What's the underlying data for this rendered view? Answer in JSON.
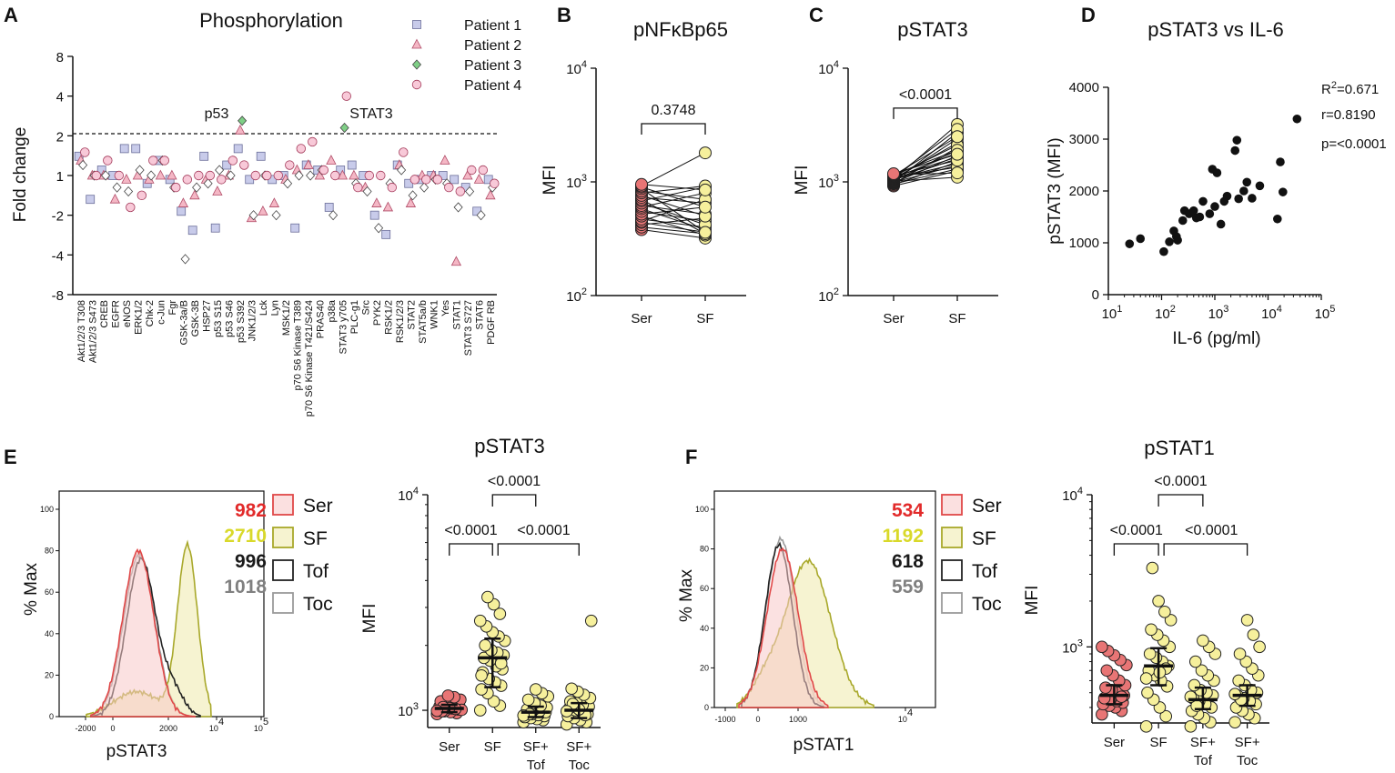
{
  "colors": {
    "patient1": "#c8cbea",
    "patient2": "#f4b7c5",
    "patient3": "#9fd6a3",
    "patient4": "#f8c9d8",
    "ser": "#e87575",
    "sf": "#f6f09c",
    "scatter": "#111111",
    "ser_hist": "#e04848",
    "sf_hist": "#a8a82a",
    "tof_hist": "#222222",
    "toc_hist": "#9a9a9a",
    "mfi_ser": "#e22a2a",
    "mfi_sf": "#d9d92a",
    "mfi_tof": "#1a1a1a",
    "mfi_toc": "#808080"
  },
  "chart_data": [
    {
      "panel": "A",
      "type": "scatter",
      "title": "Phosphorylation",
      "ylabel": "Fold change",
      "yticks": [
        "8",
        "4",
        "2",
        "1",
        "-2",
        "-4",
        "-8"
      ],
      "threshold": "2",
      "legend": [
        "Patient 1",
        "Patient 2",
        "Patient 3",
        "Patient 4"
      ],
      "annotations": [
        "p53",
        "STAT3"
      ],
      "categories": [
        "Akt1/2/3 T308",
        "Akt1/2/3 S473",
        "CREB",
        "EGFR",
        "eNOS",
        "ERK1/2",
        "Chk-2",
        "c-Jun",
        "Fgr",
        "GSK-3a/B",
        "GSK-3B",
        "HSP27",
        "p53 S15",
        "p53 S46",
        "p53 S392",
        "JNK1/2/3",
        "Lck",
        "Lyn",
        "MSK1/2",
        "p70 S6 Kinase T389",
        "p70 S6 Kinase T421/S424",
        "PRAS40",
        "p38a",
        "STAT3 y705",
        "PLC-g1",
        "Src",
        "PYK2",
        "RSK1/2",
        "RSK1/2/3",
        "STAT2",
        "STAT5a/b",
        "WNK1",
        "Yes",
        "STAT1",
        "STAT3 S727",
        "STAT6",
        "PDGF RB"
      ],
      "series": [
        {
          "name": "Patient 1",
          "values": [
            1.4,
            -1.6,
            1.1,
            1.0,
            1.6,
            1.6,
            -1.2,
            1.3,
            -1.1,
            -1.9,
            -2.6,
            1.4,
            -2.5,
            1.2,
            1.6,
            -1.1,
            1.4,
            -1.1,
            1.0,
            -2.5,
            1.2,
            1.1,
            -1.8,
            1.1,
            1.2,
            1.0,
            -2.0,
            -2.8,
            1.2,
            -1.2,
            -1.1,
            1.0,
            1.0,
            -1.1,
            -1.3,
            -1.9,
            -1.1
          ]
        },
        {
          "name": "Patient 2",
          "values": [
            1.3,
            1.0,
            1.0,
            -1.6,
            -1.1,
            1.0,
            -1.1,
            1.0,
            1.0,
            -1.7,
            -1.5,
            -1.1,
            -1.4,
            1.0,
            2.2,
            -2.1,
            -1.9,
            -1.7,
            -1.1,
            1.1,
            1.2,
            1.0,
            1.3,
            1.0,
            -1.0,
            -1.3,
            -1.7,
            -1.8,
            1.2,
            -1.7,
            -1.0,
            1.0,
            1.3,
            -4.5,
            1.0,
            -1.1,
            -1.5
          ]
        },
        {
          "name": "Patient 3",
          "values": [
            1.2,
            1.0,
            1.0,
            -1.3,
            -1.4,
            1.1,
            1.0,
            1.3,
            -1.3,
            -4.3,
            -1.3,
            -1.2,
            1.1,
            1.0,
            2.6,
            -2.0,
            -1.0,
            -2.0,
            -1.2,
            1.0,
            1.0,
            1.1,
            -2.0,
            2.3,
            -1.2,
            -1.4,
            -2.5,
            -1.2,
            1.1,
            -1.5,
            -1.3,
            -1.1,
            -1.2,
            -1.8,
            -1.4,
            -2.0,
            -1.3
          ]
        },
        {
          "name": "Patient 4",
          "values": [
            1.5,
            1.0,
            1.3,
            1.0,
            -1.8,
            -1.5,
            1.3,
            1.3,
            -1.3,
            -1.1,
            1.0,
            -1.0,
            -1.1,
            1.3,
            1.2,
            1.0,
            -1.0,
            1.0,
            1.2,
            1.6,
            1.8,
            1.1,
            1.0,
            4.0,
            -1.3,
            1.0,
            -1.0,
            -1.3,
            1.5,
            -1.1,
            -1.1,
            -1.1,
            -1.3,
            -1.4,
            1.1,
            1.1,
            -1.2
          ]
        }
      ]
    },
    {
      "panel": "B",
      "type": "line",
      "title": "pNFκBp65",
      "ylabel": "MFI",
      "yticks": [
        "10",
        "10",
        "10"
      ],
      "yexp": [
        "4",
        "3",
        "2"
      ],
      "categories": [
        "Ser",
        "SF"
      ],
      "pvalue": "0.3748",
      "pairs": [
        [
          380,
          320
        ],
        [
          400,
          350
        ],
        [
          420,
          480
        ],
        [
          440,
          360
        ],
        [
          450,
          700
        ],
        [
          470,
          400
        ],
        [
          500,
          340
        ],
        [
          520,
          600
        ],
        [
          550,
          450
        ],
        [
          580,
          380
        ],
        [
          600,
          800
        ],
        [
          620,
          520
        ],
        [
          650,
          420
        ],
        [
          680,
          900
        ],
        [
          700,
          350
        ],
        [
          730,
          650
        ],
        [
          760,
          500
        ],
        [
          800,
          920
        ],
        [
          830,
          700
        ],
        [
          870,
          360
        ],
        [
          900,
          600
        ],
        [
          920,
          1800
        ],
        [
          950,
          850
        ]
      ]
    },
    {
      "panel": "C",
      "type": "line",
      "title": "pSTAT3",
      "ylabel": "MFI",
      "yticks": [
        "10",
        "10",
        "10"
      ],
      "yexp": [
        "4",
        "3",
        "2"
      ],
      "categories": [
        "Ser",
        "SF"
      ],
      "pvalue": "<0.0001",
      "pairs": [
        [
          920,
          1250
        ],
        [
          940,
          1500
        ],
        [
          960,
          1300
        ],
        [
          970,
          2000
        ],
        [
          980,
          1700
        ],
        [
          990,
          1400
        ],
        [
          1000,
          2700
        ],
        [
          1010,
          1100
        ],
        [
          1020,
          1900
        ],
        [
          1030,
          2400
        ],
        [
          1040,
          1600
        ],
        [
          1050,
          3200
        ],
        [
          1060,
          1450
        ],
        [
          1070,
          2200
        ],
        [
          1080,
          1800
        ],
        [
          1090,
          1350
        ],
        [
          1100,
          2900
        ],
        [
          1110,
          1650
        ],
        [
          1120,
          2100
        ],
        [
          1130,
          1550
        ],
        [
          1140,
          2500
        ],
        [
          1150,
          1200
        ],
        [
          1160,
          1900
        ],
        [
          1180,
          1750
        ]
      ]
    },
    {
      "panel": "D",
      "type": "scatter",
      "title": "pSTAT3 vs IL-6",
      "xlabel": "IL-6 (pg/ml)",
      "ylabel": "pSTAT3 (MFI)",
      "yticks": [
        "4000",
        "3000",
        "2000",
        "1000",
        "0"
      ],
      "xticks": [
        "10",
        "10",
        "10",
        "10",
        "10"
      ],
      "xexp": [
        "1",
        "2",
        "3",
        "4",
        "5"
      ],
      "stats": {
        "r2_prefix": "R",
        "r2_sup": "2",
        "r2_value": "=0.671",
        "r": "r=0.8190",
        "p": "p=<0.0001"
      },
      "points": [
        [
          25,
          980
        ],
        [
          40,
          1080
        ],
        [
          110,
          830
        ],
        [
          140,
          1020
        ],
        [
          170,
          1230
        ],
        [
          190,
          1120
        ],
        [
          200,
          1050
        ],
        [
          250,
          1430
        ],
        [
          270,
          1620
        ],
        [
          330,
          1560
        ],
        [
          400,
          1620
        ],
        [
          450,
          1480
        ],
        [
          520,
          1500
        ],
        [
          600,
          1800
        ],
        [
          800,
          1560
        ],
        [
          900,
          2420
        ],
        [
          1000,
          1700
        ],
        [
          1100,
          2350
        ],
        [
          1300,
          1360
        ],
        [
          1500,
          1800
        ],
        [
          1700,
          1900
        ],
        [
          2400,
          2780
        ],
        [
          2600,
          2980
        ],
        [
          2800,
          1850
        ],
        [
          3500,
          2000
        ],
        [
          4000,
          2170
        ],
        [
          5000,
          1860
        ],
        [
          7000,
          2100
        ],
        [
          15000,
          1460
        ],
        [
          17000,
          2560
        ],
        [
          19000,
          1980
        ],
        [
          35000,
          3390
        ]
      ]
    },
    {
      "panel": "E",
      "type": "area",
      "xlabel": "pSTAT3",
      "ylabel": "% Max",
      "yticks": [
        "100",
        "80",
        "60",
        "40",
        "20",
        "0"
      ],
      "xticks": [
        "-2000",
        "0",
        "2000",
        "10",
        "10"
      ],
      "xexp": [
        "4",
        "5"
      ],
      "mfi": [
        "982",
        "2710",
        "996",
        "1018"
      ],
      "legend": [
        "Ser",
        "SF",
        "Tof",
        "Toc"
      ]
    },
    {
      "panel": "E",
      "type": "scatter",
      "title": "pSTAT3",
      "ylabel": "MFI",
      "yticks": [
        "10",
        "10"
      ],
      "yexp": [
        "4",
        "3"
      ],
      "categories": [
        [
          "Ser"
        ],
        [
          "SF"
        ],
        [
          "SF+",
          "Tof"
        ],
        [
          "SF+",
          "Toc"
        ]
      ],
      "pvalues": [
        "<0.0001",
        "<0.0001",
        "<0.0001"
      ],
      "groups": [
        {
          "name": "Ser",
          "median": 1020,
          "q1": 980,
          "q3": 1060,
          "values": [
            960,
            970,
            980,
            990,
            1000,
            1010,
            1020,
            1030,
            1040,
            1050,
            1060,
            1080,
            1100,
            1120,
            1150,
            1170,
            990,
            1005,
            1015,
            1025,
            1035,
            995
          ]
        },
        {
          "name": "SF",
          "median": 1750,
          "q1": 1280,
          "q3": 2150,
          "values": [
            1000,
            1050,
            1100,
            1200,
            1250,
            1300,
            1350,
            1400,
            1500,
            1550,
            1600,
            1700,
            1750,
            1800,
            1850,
            1900,
            2000,
            2100,
            2200,
            2300,
            2450,
            2600,
            2800,
            3100,
            3350,
            1450,
            1650
          ]
        },
        {
          "name": "SF+Tof",
          "median": 980,
          "q1": 930,
          "q3": 1040,
          "values": [
            880,
            900,
            910,
            920,
            930,
            940,
            950,
            960,
            970,
            980,
            990,
            1000,
            1010,
            1030,
            1050,
            1080,
            1120,
            1160,
            1200,
            1250,
            960,
            945
          ]
        },
        {
          "name": "SF+Toc",
          "median": 1000,
          "q1": 920,
          "q3": 1080,
          "values": [
            860,
            880,
            900,
            920,
            940,
            960,
            980,
            1000,
            1020,
            1040,
            1060,
            1080,
            1100,
            1140,
            1180,
            1220,
            1260,
            2600,
            950,
            1010,
            1070,
            990
          ]
        }
      ]
    },
    {
      "panel": "F",
      "type": "area",
      "xlabel": "pSTAT1",
      "ylabel": "% Max",
      "yticks": [
        "100",
        "80",
        "60",
        "40",
        "20",
        "0"
      ],
      "xticks": [
        "-1000",
        "0",
        "1000",
        "10"
      ],
      "xexp": [
        "4"
      ],
      "mfi": [
        "534",
        "1192",
        "618",
        "559"
      ],
      "legend": [
        "Ser",
        "SF",
        "Tof",
        "Toc"
      ]
    },
    {
      "panel": "F",
      "type": "scatter",
      "title": "pSTAT1",
      "ylabel": "MFI",
      "yticks": [
        "10",
        "10"
      ],
      "yexp": [
        "4",
        "3"
      ],
      "categories": [
        [
          "Ser"
        ],
        [
          "SF"
        ],
        [
          "SF+",
          "Tof"
        ],
        [
          "SF+",
          "Toc"
        ]
      ],
      "pvalues": [
        "<0.0001",
        "<0.0001",
        "<0.0001"
      ],
      "groups": [
        {
          "name": "Ser",
          "median": 480,
          "q1": 420,
          "q3": 560,
          "values": [
            360,
            380,
            400,
            410,
            420,
            430,
            440,
            450,
            460,
            480,
            500,
            520,
            540,
            560,
            600,
            650,
            700,
            760,
            820,
            880,
            940,
            1000,
            470
          ]
        },
        {
          "name": "SF",
          "median": 750,
          "q1": 560,
          "q3": 980,
          "values": [
            300,
            350,
            400,
            450,
            500,
            550,
            600,
            650,
            700,
            750,
            800,
            850,
            900,
            1000,
            1100,
            1200,
            1300,
            1500,
            1700,
            2000,
            3300,
            620,
            720,
            680
          ]
        },
        {
          "name": "SF+Tof",
          "median": 450,
          "q1": 390,
          "q3": 540,
          "values": [
            300,
            320,
            340,
            360,
            380,
            400,
            420,
            440,
            460,
            480,
            500,
            520,
            560,
            600,
            650,
            700,
            800,
            900,
            1000,
            1100,
            410,
            470
          ]
        },
        {
          "name": "SF+Toc",
          "median": 480,
          "q1": 410,
          "q3": 560,
          "values": [
            320,
            340,
            360,
            380,
            400,
            420,
            440,
            460,
            480,
            500,
            520,
            560,
            600,
            650,
            720,
            800,
            900,
            1000,
            1200,
            1500,
            450,
            490
          ]
        }
      ]
    }
  ],
  "panel_labels": [
    "A",
    "B",
    "C",
    "D",
    "E",
    "F"
  ]
}
